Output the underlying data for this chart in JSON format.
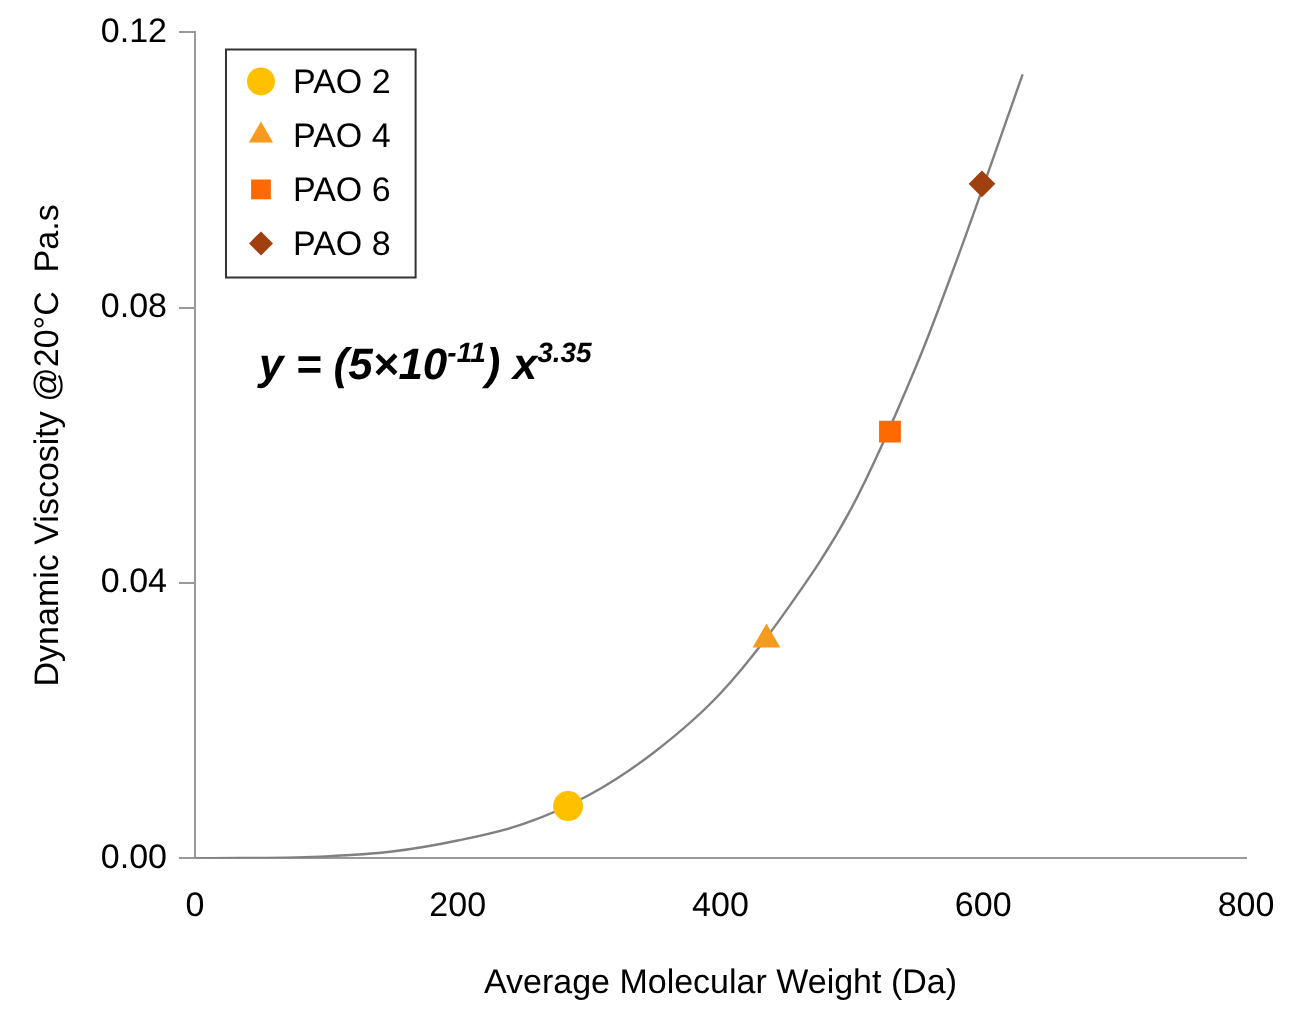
{
  "chart_data": {
    "type": "scatter",
    "xlabel": "Average Molecular Weight (Da)",
    "ylabel": "Dynamic Viscosity @20°C  Pa.s",
    "xlim": [
      0,
      800
    ],
    "xticks": [
      0,
      200,
      400,
      600,
      800
    ],
    "ylim": [
      0,
      0.12
    ],
    "yticks": [
      {
        "value": 0,
        "label": "0.00"
      },
      {
        "value": 0.04,
        "label": "0.04"
      },
      {
        "value": 0.08,
        "label": "0.08"
      },
      {
        "value": 0.12,
        "label": "0.12"
      }
    ],
    "grid": false,
    "legend": "top left",
    "annotations": [
      "y = (5×10$^{-11}$) x$^{3.35}$"
    ],
    "series": [
      {
        "name": "PAO 2",
        "color": "#ffc000",
        "marker": "circle",
        "x": [
          284
        ],
        "values": [
          0.0076
        ]
      },
      {
        "name": "PAO 4",
        "color": "#f79a1e",
        "marker": "triangle",
        "x": [
          435
        ],
        "values": [
          0.0318
        ]
      },
      {
        "name": "PAO 6",
        "color": "#ff6a00",
        "marker": "square",
        "x": [
          529
        ],
        "values": [
          0.062
        ]
      },
      {
        "name": "PAO 8",
        "color": "#a0400f",
        "marker": "diamond",
        "x": [
          599
        ],
        "values": [
          0.098
        ]
      },
      {
        "type": "line",
        "color": "#808080",
        "marker": "none",
        "x": [
          0,
          100,
          150,
          200,
          250,
          300,
          350,
          400,
          450,
          500,
          550,
          580,
          630
        ],
        "values": [
          0,
          0.0003,
          0.001,
          0.0026,
          0.005,
          0.0092,
          0.0155,
          0.024,
          0.036,
          0.051,
          0.072,
          0.087,
          0.1139
        ]
      }
    ]
  }
}
